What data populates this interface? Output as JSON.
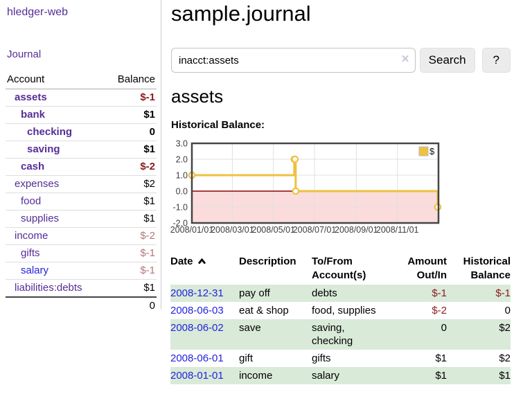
{
  "brand": "hledger-web",
  "nav": {
    "journal": "Journal"
  },
  "sidebar": {
    "columns": {
      "account": "Account",
      "balance": "Balance"
    },
    "accounts": [
      {
        "name": "assets",
        "balance": "$-1",
        "level": 1,
        "bold": true,
        "negative": true,
        "visited": true
      },
      {
        "name": "bank",
        "balance": "$1",
        "level": 2,
        "bold": true,
        "negative": false,
        "visited": true
      },
      {
        "name": "checking",
        "balance": "0",
        "level": 3,
        "bold": true,
        "negative": false,
        "visited": true
      },
      {
        "name": "saving",
        "balance": "$1",
        "level": 3,
        "bold": true,
        "negative": false,
        "visited": true
      },
      {
        "name": "cash",
        "balance": "$-2",
        "level": 2,
        "bold": true,
        "negative": true,
        "visited": true
      },
      {
        "name": "expenses",
        "balance": "$2",
        "level": 1,
        "bold": false,
        "negative": false,
        "visited": true
      },
      {
        "name": "food",
        "balance": "$1",
        "level": 2,
        "bold": false,
        "negative": false,
        "visited": true
      },
      {
        "name": "supplies",
        "balance": "$1",
        "level": 2,
        "bold": false,
        "negative": false,
        "visited": true
      },
      {
        "name": "income",
        "balance": "$-2",
        "level": 1,
        "bold": false,
        "negative": true,
        "visited": true
      },
      {
        "name": "gifts",
        "balance": "$-1",
        "level": 2,
        "bold": false,
        "negative": true,
        "visited": true
      },
      {
        "name": "salary",
        "balance": "$-1",
        "level": 2,
        "bold": false,
        "negative": true,
        "visited": false
      },
      {
        "name": "liabilities:debts",
        "balance": "$1",
        "level": 1,
        "bold": false,
        "negative": false,
        "visited": true
      }
    ],
    "total": "0"
  },
  "page": {
    "title": "sample.journal"
  },
  "search": {
    "value": "inacct:assets",
    "clear": "×",
    "button": "Search",
    "help": "?"
  },
  "account": {
    "heading": "assets",
    "chart_title": "Historical Balance:"
  },
  "chart_data": {
    "type": "line",
    "step": true,
    "title": "Historical Balance",
    "x_range": [
      "2008-01-01",
      "2009-01-01"
    ],
    "ylim": [
      -2,
      3
    ],
    "y_ticks": [
      3,
      2,
      1,
      0,
      -1,
      -2
    ],
    "x_ticks": [
      "2008/01/01",
      "2008/03/01",
      "2008/05/01",
      "2008/07/01",
      "2008/09/01",
      "2008/11/01"
    ],
    "series": [
      {
        "name": "$",
        "color": "#edc240",
        "points": [
          [
            "2008-01-01",
            1
          ],
          [
            "2008-06-01",
            2
          ],
          [
            "2008-06-02",
            2
          ],
          [
            "2008-06-03",
            0
          ],
          [
            "2008-12-31",
            -1
          ]
        ]
      }
    ],
    "legend": {
      "position": "top-right",
      "entries": [
        {
          "label": "$",
          "color": "#edc240"
        }
      ]
    },
    "grid": true,
    "negative_region_color": "#fbdcdc",
    "zero_line_color": "#8b0000"
  },
  "register": {
    "columns": [
      "Date",
      "Description",
      "To/From Account(s)",
      "Amount Out/In",
      "Historical Balance"
    ],
    "sort": {
      "column": "Date",
      "direction": "asc"
    },
    "rows": [
      {
        "date": "2008-12-31",
        "description": "pay off",
        "accounts": "debts",
        "amount": "$-1",
        "balance": "$-1"
      },
      {
        "date": "2008-06-03",
        "description": "eat & shop",
        "accounts": "food, supplies",
        "amount": "$-2",
        "balance": "0"
      },
      {
        "date": "2008-06-02",
        "description": "save",
        "accounts": "saving, checking",
        "amount": "0",
        "balance": "$2"
      },
      {
        "date": "2008-06-01",
        "description": "gift",
        "accounts": "gifts",
        "amount": "$1",
        "balance": "$2"
      },
      {
        "date": "2008-01-01",
        "description": "income",
        "accounts": "salary",
        "amount": "$1",
        "balance": "$1"
      }
    ]
  }
}
